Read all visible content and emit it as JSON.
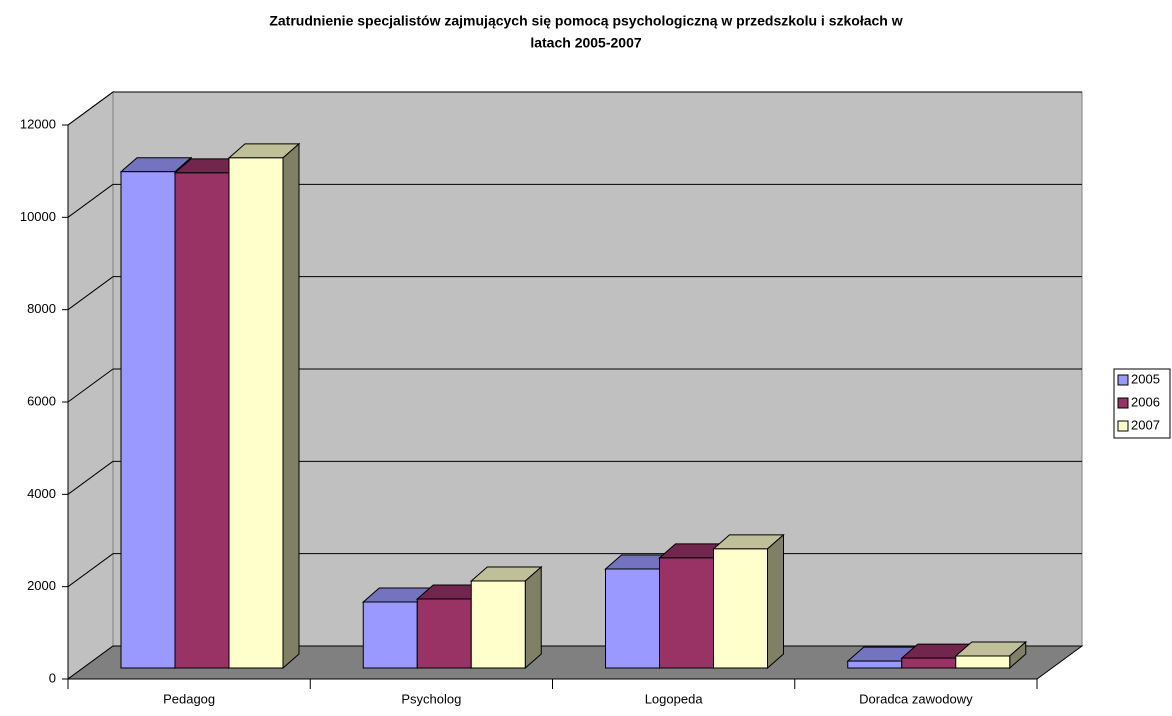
{
  "chart_data": {
    "type": "bar3d",
    "title": "Zatrudnienie specjalistów zajmujących się pomocą psychologiczną w przedszkolu i szkołach w",
    "subtitle": "latach 2005-2007",
    "categories": [
      "Pedagog",
      "Psycholog",
      "Logopeda",
      "Doradca zawodowy"
    ],
    "series": [
      {
        "name": "2005",
        "color": "#9999ff",
        "values": [
          10750,
          1430,
          2145,
          150
        ]
      },
      {
        "name": "2006",
        "color": "#993366",
        "values": [
          10725,
          1495,
          2385,
          215
        ]
      },
      {
        "name": "2007",
        "color": "#ffffcc",
        "values": [
          11050,
          1885,
          2580,
          260
        ]
      }
    ],
    "ylim": [
      0,
      12000
    ],
    "yticks": [
      0,
      2000,
      4000,
      6000,
      8000,
      10000,
      12000
    ],
    "grid": true,
    "legend": "right"
  }
}
